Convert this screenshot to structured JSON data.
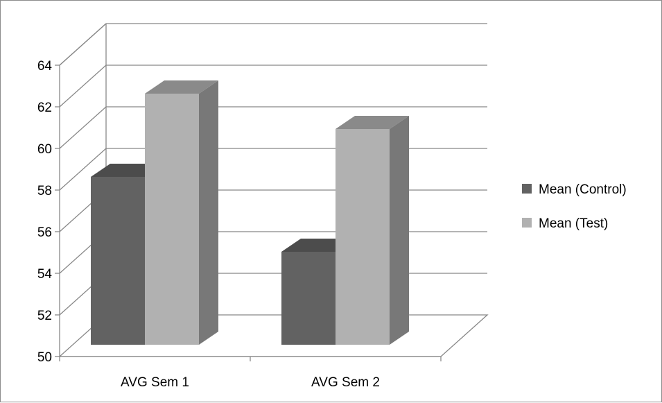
{
  "chart_data": {
    "type": "bar",
    "title": "",
    "xlabel": "",
    "ylabel": "",
    "categories": [
      "AVG Sem 1",
      "AVG Sem 2"
    ],
    "series": [
      {
        "name": "Mean (Control)",
        "values": [
          58.0,
          54.4
        ],
        "color": "#626262"
      },
      {
        "name": "Mean (Test)",
        "values": [
          62.0,
          60.3
        ],
        "color": "#b1b1b1"
      }
    ],
    "ylim": [
      50,
      64
    ],
    "yticks": [
      50,
      52,
      54,
      56,
      58,
      60,
      62,
      64
    ],
    "grid": true,
    "legend_position": "right",
    "style": "3d-column"
  }
}
